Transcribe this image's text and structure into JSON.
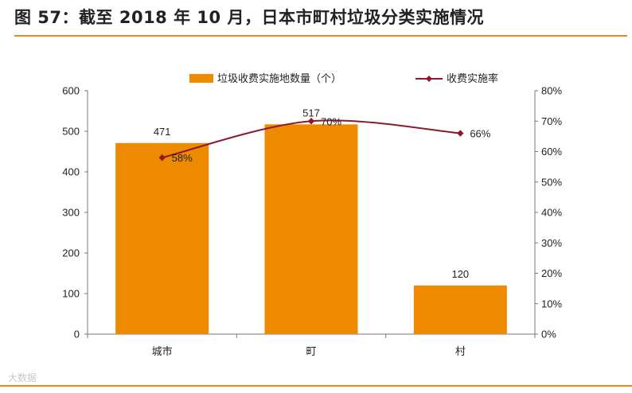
{
  "figure_title": "图 57：截至 2018 年 10 月，日本市町村垃圾分类实施情况",
  "watermark": "大数据",
  "colors": {
    "bar": "#ee8a00",
    "line": "#8b1a2e",
    "accent_rule": "#e8891a",
    "axis": "#777777"
  },
  "chart_data": {
    "type": "bar",
    "title": "",
    "categories": [
      "城市",
      "町",
      "村"
    ],
    "series": [
      {
        "name": "垃圾收费实施地数量（个）",
        "kind": "bar",
        "axis": "left",
        "values": [
          471,
          517,
          120
        ],
        "labels": [
          "471",
          "517",
          "120"
        ]
      },
      {
        "name": "收费实施率",
        "kind": "line",
        "axis": "right",
        "values": [
          58,
          70,
          66
        ],
        "labels": [
          "58%",
          "70%",
          "66%"
        ]
      }
    ],
    "y_left": {
      "min": 0,
      "max": 600,
      "step": 100,
      "ticks": [
        "0",
        "100",
        "200",
        "300",
        "400",
        "500",
        "600"
      ]
    },
    "y_right": {
      "min": 0,
      "max": 80,
      "step": 10,
      "ticks": [
        "0%",
        "10%",
        "20%",
        "30%",
        "40%",
        "50%",
        "60%",
        "70%",
        "80%"
      ]
    },
    "xlabel": "",
    "ylabel": "",
    "legend_position": "top",
    "grid": false
  }
}
